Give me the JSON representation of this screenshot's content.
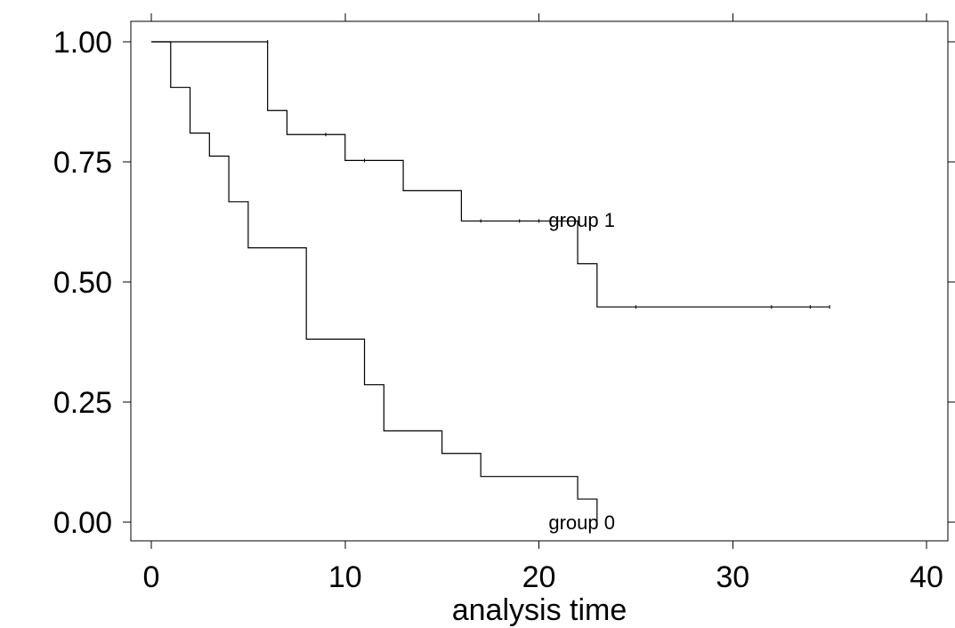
{
  "chart_data": {
    "type": "line",
    "title": "",
    "xlabel": "analysis time",
    "ylabel": "",
    "xlim": [
      0,
      40
    ],
    "ylim": [
      0,
      1
    ],
    "x_ticks": [
      0,
      10,
      20,
      30,
      40
    ],
    "x_tick_labels": [
      "0",
      "10",
      "20",
      "30",
      "40"
    ],
    "y_ticks": [
      0,
      0.25,
      0.5,
      0.75,
      1
    ],
    "y_tick_labels": [
      "0.00",
      "0.25",
      "0.50",
      "0.75",
      "1.00"
    ],
    "grid": false,
    "series": [
      {
        "name": "group 0",
        "label_at": [
          20.5,
          0.0
        ],
        "steps": [
          [
            0,
            1.0
          ],
          [
            1,
            0.905
          ],
          [
            2,
            0.81
          ],
          [
            3,
            0.762
          ],
          [
            4,
            0.667
          ],
          [
            5,
            0.571
          ],
          [
            8,
            0.381
          ],
          [
            11,
            0.286
          ],
          [
            12,
            0.19
          ],
          [
            15,
            0.143
          ],
          [
            17,
            0.095
          ],
          [
            22,
            0.048
          ],
          [
            23,
            0.0
          ]
        ],
        "end_x": 23,
        "censored": []
      },
      {
        "name": "group 1",
        "label_at": [
          20.5,
          0.63
        ],
        "steps": [
          [
            0,
            1.0
          ],
          [
            6,
            0.857
          ],
          [
            7,
            0.807
          ],
          [
            10,
            0.753
          ],
          [
            13,
            0.69
          ],
          [
            16,
            0.627
          ],
          [
            22,
            0.538
          ],
          [
            23,
            0.448
          ]
        ],
        "end_x": 35,
        "censored": [
          [
            6,
            1.0
          ],
          [
            9,
            0.807
          ],
          [
            11,
            0.753
          ],
          [
            17,
            0.627
          ],
          [
            19,
            0.627
          ],
          [
            20,
            0.627
          ],
          [
            25,
            0.448
          ],
          [
            32,
            0.448
          ],
          [
            34,
            0.448
          ],
          [
            35,
            0.448
          ]
        ]
      }
    ]
  }
}
